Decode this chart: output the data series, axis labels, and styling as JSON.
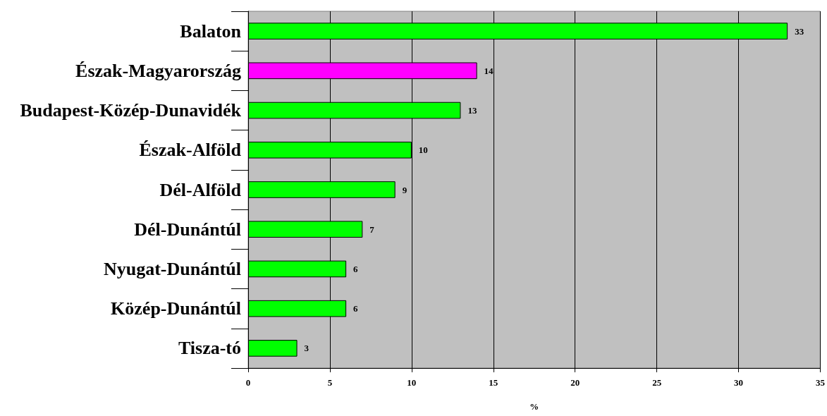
{
  "chart_data": {
    "type": "bar",
    "orientation": "horizontal",
    "categories": [
      "Balaton",
      "Észak-Magyarország",
      "Budapest-Közép-Dunavidék",
      "Észak-Alföld",
      "Dél-Alföld",
      "Dél-Dunántúl",
      "Nyugat-Dunántúl",
      "Közép-Dunántúl",
      "Tisza-tó"
    ],
    "values": [
      33,
      14,
      13,
      10,
      9,
      7,
      6,
      6,
      3
    ],
    "colors": [
      "#00ff00",
      "#ff00ff",
      "#00ff00",
      "#00ff00",
      "#00ff00",
      "#00ff00",
      "#00ff00",
      "#00ff00",
      "#00ff00"
    ],
    "xlabel": "%",
    "xlim": [
      0,
      35
    ],
    "xticks": [
      0,
      5,
      10,
      15,
      20,
      25,
      30,
      35
    ],
    "grid": "x",
    "data_labels": true
  }
}
